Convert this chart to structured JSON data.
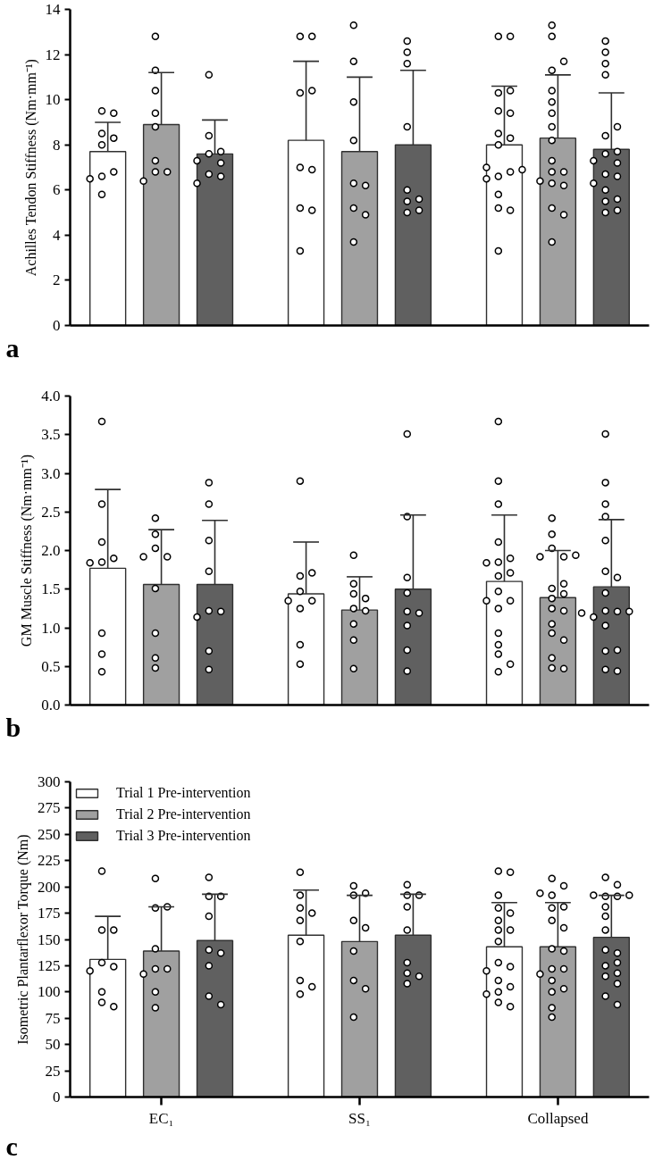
{
  "chart_data": [
    {
      "type": "bar",
      "categories": [
        "EC₁",
        "SS₁",
        "Collapsed"
      ],
      "ylabel": "Achilles Tendon Stiffness (Nm·mm⁻¹)",
      "annotations": [
        "a"
      ],
      "ylim": [
        0,
        14
      ],
      "yticks": [
        0,
        2,
        4,
        6,
        8,
        10,
        12,
        14
      ],
      "tick_labels": "y",
      "grid": false,
      "legend": false,
      "series": [
        {
          "color": "#ffffff",
          "values": [
            7.7,
            8.2,
            8.0
          ],
          "errors": [
            [
              7.7,
              9.0
            ],
            [
              8.2,
              11.7
            ],
            [
              8.0,
              10.6
            ]
          ]
        },
        {
          "color": "#a0a0a0",
          "values": [
            8.9,
            7.7,
            8.3
          ],
          "errors": [
            [
              8.9,
              11.2
            ],
            [
              7.7,
              11.0
            ],
            [
              8.3,
              11.1
            ]
          ]
        },
        {
          "color": "#606060",
          "values": [
            7.6,
            8.0,
            7.8
          ],
          "errors": [
            [
              7.6,
              9.1
            ],
            [
              8.0,
              11.3
            ],
            [
              7.8,
              10.3
            ]
          ]
        },
        {
          "type": "scatter",
          "marker": "circle",
          "color": "#ffffff",
          "x": [
            "EC₁",
            "EC₁",
            "EC₁",
            "EC₁",
            "EC₁",
            "EC₁",
            "EC₁",
            "EC₁",
            "EC₁",
            "SS₁",
            "SS₁",
            "SS₁",
            "SS₁",
            "SS₁",
            "SS₁",
            "SS₁",
            "SS₁",
            "SS₁",
            "Collapsed",
            "Collapsed",
            "Collapsed",
            "Collapsed",
            "Collapsed",
            "Collapsed",
            "Collapsed",
            "Collapsed",
            "Collapsed",
            "Collapsed",
            "Collapsed",
            "Collapsed",
            "Collapsed",
            "Collapsed",
            "Collapsed",
            "Collapsed",
            "Collapsed",
            "Collapsed"
          ],
          "values": [
            9.5,
            9.4,
            8.5,
            8.3,
            8.0,
            6.6,
            6.8,
            6.5,
            5.8,
            12.8,
            12.8,
            10.3,
            10.4,
            7.0,
            6.9,
            5.2,
            5.1,
            3.3,
            9.5,
            9.4,
            8.5,
            8.3,
            8.0,
            6.6,
            6.8,
            6.5,
            5.8,
            12.8,
            12.8,
            10.3,
            10.4,
            7.0,
            6.9,
            5.2,
            5.1,
            3.3
          ]
        },
        {
          "type": "scatter",
          "marker": "circle",
          "color": "#ffffff",
          "x": [
            "EC₁",
            "EC₁",
            "EC₁",
            "EC₁",
            "EC₁",
            "EC₁",
            "EC₁",
            "EC₁",
            "EC₁",
            "SS₁",
            "SS₁",
            "SS₁",
            "SS₁",
            "SS₁",
            "SS₁",
            "SS₁",
            "SS₁",
            "SS₁",
            "Collapsed",
            "Collapsed",
            "Collapsed",
            "Collapsed",
            "Collapsed",
            "Collapsed",
            "Collapsed",
            "Collapsed",
            "Collapsed",
            "Collapsed",
            "Collapsed",
            "Collapsed",
            "Collapsed",
            "Collapsed",
            "Collapsed",
            "Collapsed",
            "Collapsed",
            "Collapsed"
          ],
          "values": [
            12.8,
            11.3,
            10.4,
            9.4,
            8.8,
            7.3,
            6.8,
            6.8,
            6.4,
            13.3,
            11.7,
            9.9,
            8.2,
            6.3,
            6.2,
            5.2,
            4.9,
            3.7,
            12.8,
            11.3,
            10.4,
            9.4,
            8.8,
            7.3,
            6.8,
            6.8,
            6.4,
            13.3,
            11.7,
            9.9,
            8.2,
            6.3,
            6.2,
            5.2,
            4.9,
            3.7
          ]
        },
        {
          "type": "scatter",
          "marker": "circle",
          "color": "#ffffff",
          "x": [
            "EC₁",
            "EC₁",
            "EC₁",
            "EC₁",
            "EC₁",
            "EC₁",
            "EC₁",
            "EC₁",
            "EC₁",
            "SS₁",
            "SS₁",
            "SS₁",
            "SS₁",
            "SS₁",
            "SS₁",
            "SS₁",
            "SS₁",
            "SS₁",
            "Collapsed",
            "Collapsed",
            "Collapsed",
            "Collapsed",
            "Collapsed",
            "Collapsed",
            "Collapsed",
            "Collapsed",
            "Collapsed",
            "Collapsed",
            "Collapsed",
            "Collapsed",
            "Collapsed",
            "Collapsed",
            "Collapsed",
            "Collapsed",
            "Collapsed",
            "Collapsed"
          ],
          "values": [
            11.1,
            8.4,
            7.6,
            7.7,
            7.3,
            7.2,
            6.7,
            6.6,
            6.3,
            12.6,
            12.1,
            11.6,
            8.8,
            6.0,
            5.6,
            5.5,
            5.1,
            5.0,
            11.1,
            8.4,
            7.6,
            7.7,
            7.3,
            7.2,
            6.7,
            6.6,
            6.3,
            12.6,
            12.1,
            11.6,
            8.8,
            6.0,
            5.6,
            5.5,
            5.1,
            5.0
          ]
        }
      ]
    },
    {
      "type": "bar",
      "categories": [
        "EC₁",
        "SS₁",
        "Collapsed"
      ],
      "ylabel": "GM Muscle Stiffness (Nm·mm⁻¹)",
      "annotations": [
        "b"
      ],
      "ylim": [
        0,
        4
      ],
      "yticks": [
        {
          "value": 0,
          "label": "0.0"
        },
        {
          "value": 0.5,
          "label": "0.5"
        },
        {
          "value": 1,
          "label": "1.0"
        },
        {
          "value": 1.5,
          "label": "1.5"
        },
        {
          "value": 2,
          "label": "2.0"
        },
        {
          "value": 2.5,
          "label": "2.5"
        },
        {
          "value": 3,
          "label": "3.0"
        },
        {
          "value": 3.5,
          "label": "3.5"
        },
        {
          "value": 4,
          "label": "4.0"
        }
      ],
      "tick_labels": "y",
      "grid": false,
      "legend": false,
      "series": [
        {
          "color": "#ffffff",
          "values": [
            1.77,
            1.44,
            1.6
          ],
          "errors": [
            [
              1.77,
              2.79
            ],
            [
              1.44,
              2.11
            ],
            [
              1.6,
              2.46
            ]
          ]
        },
        {
          "color": "#a0a0a0",
          "values": [
            1.56,
            1.23,
            1.39
          ],
          "errors": [
            [
              1.56,
              2.27
            ],
            [
              1.23,
              1.66
            ],
            [
              1.39,
              2.0
            ]
          ]
        },
        {
          "color": "#606060",
          "values": [
            1.56,
            1.5,
            1.53
          ],
          "errors": [
            [
              1.56,
              2.39
            ],
            [
              1.5,
              2.46
            ],
            [
              1.53,
              2.4
            ]
          ]
        },
        {
          "type": "scatter",
          "marker": "circle",
          "color": "#ffffff",
          "x": [
            "EC₁",
            "EC₁",
            "EC₁",
            "EC₁",
            "EC₁",
            "EC₁",
            "EC₁",
            "EC₁",
            "EC₁",
            "SS₁",
            "SS₁",
            "SS₁",
            "SS₁",
            "SS₁",
            "SS₁",
            "SS₁",
            "SS₁",
            "SS₁",
            "Collapsed",
            "Collapsed",
            "Collapsed",
            "Collapsed",
            "Collapsed",
            "Collapsed",
            "Collapsed",
            "Collapsed",
            "Collapsed",
            "Collapsed",
            "Collapsed",
            "Collapsed",
            "Collapsed",
            "Collapsed",
            "Collapsed",
            "Collapsed",
            "Collapsed",
            "Collapsed"
          ],
          "values": [
            3.67,
            2.6,
            2.11,
            1.85,
            1.9,
            1.84,
            0.93,
            0.66,
            0.43,
            2.9,
            1.67,
            1.71,
            1.47,
            1.35,
            1.35,
            1.25,
            0.78,
            0.53,
            3.67,
            2.6,
            2.11,
            1.85,
            1.9,
            1.84,
            0.93,
            0.66,
            0.43,
            2.9,
            1.67,
            1.71,
            1.47,
            1.35,
            1.35,
            1.25,
            0.78,
            0.53
          ]
        },
        {
          "type": "scatter",
          "marker": "circle",
          "color": "#ffffff",
          "x": [
            "EC₁",
            "EC₁",
            "EC₁",
            "EC₁",
            "EC₁",
            "EC₁",
            "EC₁",
            "EC₁",
            "EC₁",
            "SS₁",
            "SS₁",
            "SS₁",
            "SS₁",
            "SS₁",
            "SS₁",
            "SS₁",
            "SS₁",
            "SS₁",
            "Collapsed",
            "Collapsed",
            "Collapsed",
            "Collapsed",
            "Collapsed",
            "Collapsed",
            "Collapsed",
            "Collapsed",
            "Collapsed",
            "Collapsed",
            "Collapsed",
            "Collapsed",
            "Collapsed",
            "Collapsed",
            "Collapsed",
            "Collapsed",
            "Collapsed",
            "Collapsed"
          ],
          "values": [
            2.42,
            2.21,
            2.03,
            1.92,
            1.92,
            1.51,
            0.93,
            0.61,
            0.48,
            1.94,
            1.57,
            1.44,
            1.38,
            1.25,
            1.22,
            1.05,
            0.84,
            0.47,
            2.42,
            2.21,
            2.03,
            1.92,
            1.92,
            1.51,
            0.93,
            0.61,
            0.48,
            1.94,
            1.57,
            1.44,
            1.38,
            1.25,
            1.22,
            1.05,
            0.84,
            0.47
          ]
        },
        {
          "type": "scatter",
          "marker": "circle",
          "color": "#ffffff",
          "x": [
            "EC₁",
            "EC₁",
            "EC₁",
            "EC₁",
            "EC₁",
            "EC₁",
            "EC₁",
            "EC₁",
            "EC₁",
            "SS₁",
            "SS₁",
            "SS₁",
            "SS₁",
            "SS₁",
            "SS₁",
            "SS₁",
            "SS₁",
            "SS₁",
            "Collapsed",
            "Collapsed",
            "Collapsed",
            "Collapsed",
            "Collapsed",
            "Collapsed",
            "Collapsed",
            "Collapsed",
            "Collapsed",
            "Collapsed",
            "Collapsed",
            "Collapsed",
            "Collapsed",
            "Collapsed",
            "Collapsed",
            "Collapsed",
            "Collapsed",
            "Collapsed"
          ],
          "values": [
            2.88,
            2.6,
            2.13,
            1.73,
            1.22,
            1.21,
            1.14,
            0.7,
            0.46,
            3.51,
            2.44,
            1.65,
            1.45,
            1.21,
            1.19,
            1.03,
            0.71,
            0.44,
            2.88,
            2.6,
            2.13,
            1.73,
            1.22,
            1.21,
            1.14,
            0.7,
            0.46,
            3.51,
            2.44,
            1.65,
            1.45,
            1.21,
            1.19,
            1.03,
            0.71,
            0.44
          ]
        }
      ]
    },
    {
      "type": "bar",
      "categories": [
        "EC₁",
        "SS₁",
        "Collapsed"
      ],
      "ylabel": "Isometric Plantarflexor Torque (Nm)",
      "annotations": [
        "c"
      ],
      "ylim": [
        0,
        300
      ],
      "yticks": [
        0,
        25,
        50,
        75,
        100,
        125,
        150,
        175,
        200,
        225,
        250,
        275,
        300
      ],
      "grid": false,
      "legend": "top left",
      "series": [
        {
          "name": "Trial 1 Pre-intervention",
          "color": "#ffffff",
          "values": [
            131,
            154,
            143
          ],
          "errors": [
            [
              131,
              172
            ],
            [
              154,
              197
            ],
            [
              143,
              185
            ]
          ]
        },
        {
          "name": "Trial 2 Pre-intervention",
          "color": "#a0a0a0",
          "values": [
            139,
            148,
            143
          ],
          "errors": [
            [
              139,
              181
            ],
            [
              148,
              192
            ],
            [
              143,
              185
            ]
          ]
        },
        {
          "name": "Trial 3 Pre-intervention",
          "color": "#606060",
          "values": [
            149,
            154,
            152
          ],
          "errors": [
            [
              149,
              193
            ],
            [
              154,
              193
            ],
            [
              152,
              192
            ]
          ]
        },
        {
          "type": "scatter",
          "marker": "circle",
          "color": "#ffffff",
          "x": [
            "EC₁",
            "EC₁",
            "EC₁",
            "EC₁",
            "EC₁",
            "EC₁",
            "EC₁",
            "EC₁",
            "EC₁",
            "SS₁",
            "SS₁",
            "SS₁",
            "SS₁",
            "SS₁",
            "SS₁",
            "SS₁",
            "SS₁",
            "SS₁",
            "Collapsed",
            "Collapsed",
            "Collapsed",
            "Collapsed",
            "Collapsed",
            "Collapsed",
            "Collapsed",
            "Collapsed",
            "Collapsed",
            "Collapsed",
            "Collapsed",
            "Collapsed",
            "Collapsed",
            "Collapsed",
            "Collapsed",
            "Collapsed",
            "Collapsed",
            "Collapsed"
          ],
          "values": [
            215,
            159,
            159,
            128,
            124,
            120,
            100,
            90,
            86,
            214,
            192,
            180,
            175,
            168,
            148,
            111,
            105,
            98,
            215,
            159,
            159,
            128,
            124,
            120,
            100,
            90,
            86,
            214,
            192,
            180,
            175,
            168,
            148,
            111,
            105,
            98
          ]
        },
        {
          "type": "scatter",
          "marker": "circle",
          "color": "#ffffff",
          "x": [
            "EC₁",
            "EC₁",
            "EC₁",
            "EC₁",
            "EC₁",
            "EC₁",
            "EC₁",
            "EC₁",
            "EC₁",
            "SS₁",
            "SS₁",
            "SS₁",
            "SS₁",
            "SS₁",
            "SS₁",
            "SS₁",
            "SS₁",
            "SS₁",
            "Collapsed",
            "Collapsed",
            "Collapsed",
            "Collapsed",
            "Collapsed",
            "Collapsed",
            "Collapsed",
            "Collapsed",
            "Collapsed",
            "Collapsed",
            "Collapsed",
            "Collapsed",
            "Collapsed",
            "Collapsed",
            "Collapsed",
            "Collapsed",
            "Collapsed",
            "Collapsed"
          ],
          "values": [
            208,
            180,
            181,
            141,
            122,
            122,
            117,
            100,
            85,
            201,
            192,
            194,
            168,
            161,
            139,
            111,
            103,
            76,
            208,
            180,
            181,
            141,
            122,
            122,
            117,
            100,
            85,
            201,
            192,
            194,
            168,
            161,
            139,
            111,
            103,
            76
          ]
        },
        {
          "type": "scatter",
          "marker": "circle",
          "color": "#ffffff",
          "x": [
            "EC₁",
            "EC₁",
            "EC₁",
            "EC₁",
            "EC₁",
            "EC₁",
            "EC₁",
            "EC₁",
            "EC₁",
            "SS₁",
            "SS₁",
            "SS₁",
            "SS₁",
            "SS₁",
            "SS₁",
            "SS₁",
            "SS₁",
            "SS₁",
            "Collapsed",
            "Collapsed",
            "Collapsed",
            "Collapsed",
            "Collapsed",
            "Collapsed",
            "Collapsed",
            "Collapsed",
            "Collapsed",
            "Collapsed",
            "Collapsed",
            "Collapsed",
            "Collapsed",
            "Collapsed",
            "Collapsed",
            "Collapsed",
            "Collapsed",
            "Collapsed"
          ],
          "values": [
            209,
            191,
            191,
            172,
            140,
            137,
            125,
            96,
            88,
            202,
            192,
            192,
            181,
            159,
            128,
            118,
            115,
            108,
            209,
            191,
            191,
            172,
            140,
            137,
            125,
            96,
            88,
            202,
            192,
            192,
            181,
            159,
            128,
            118,
            115,
            108
          ]
        }
      ]
    }
  ]
}
